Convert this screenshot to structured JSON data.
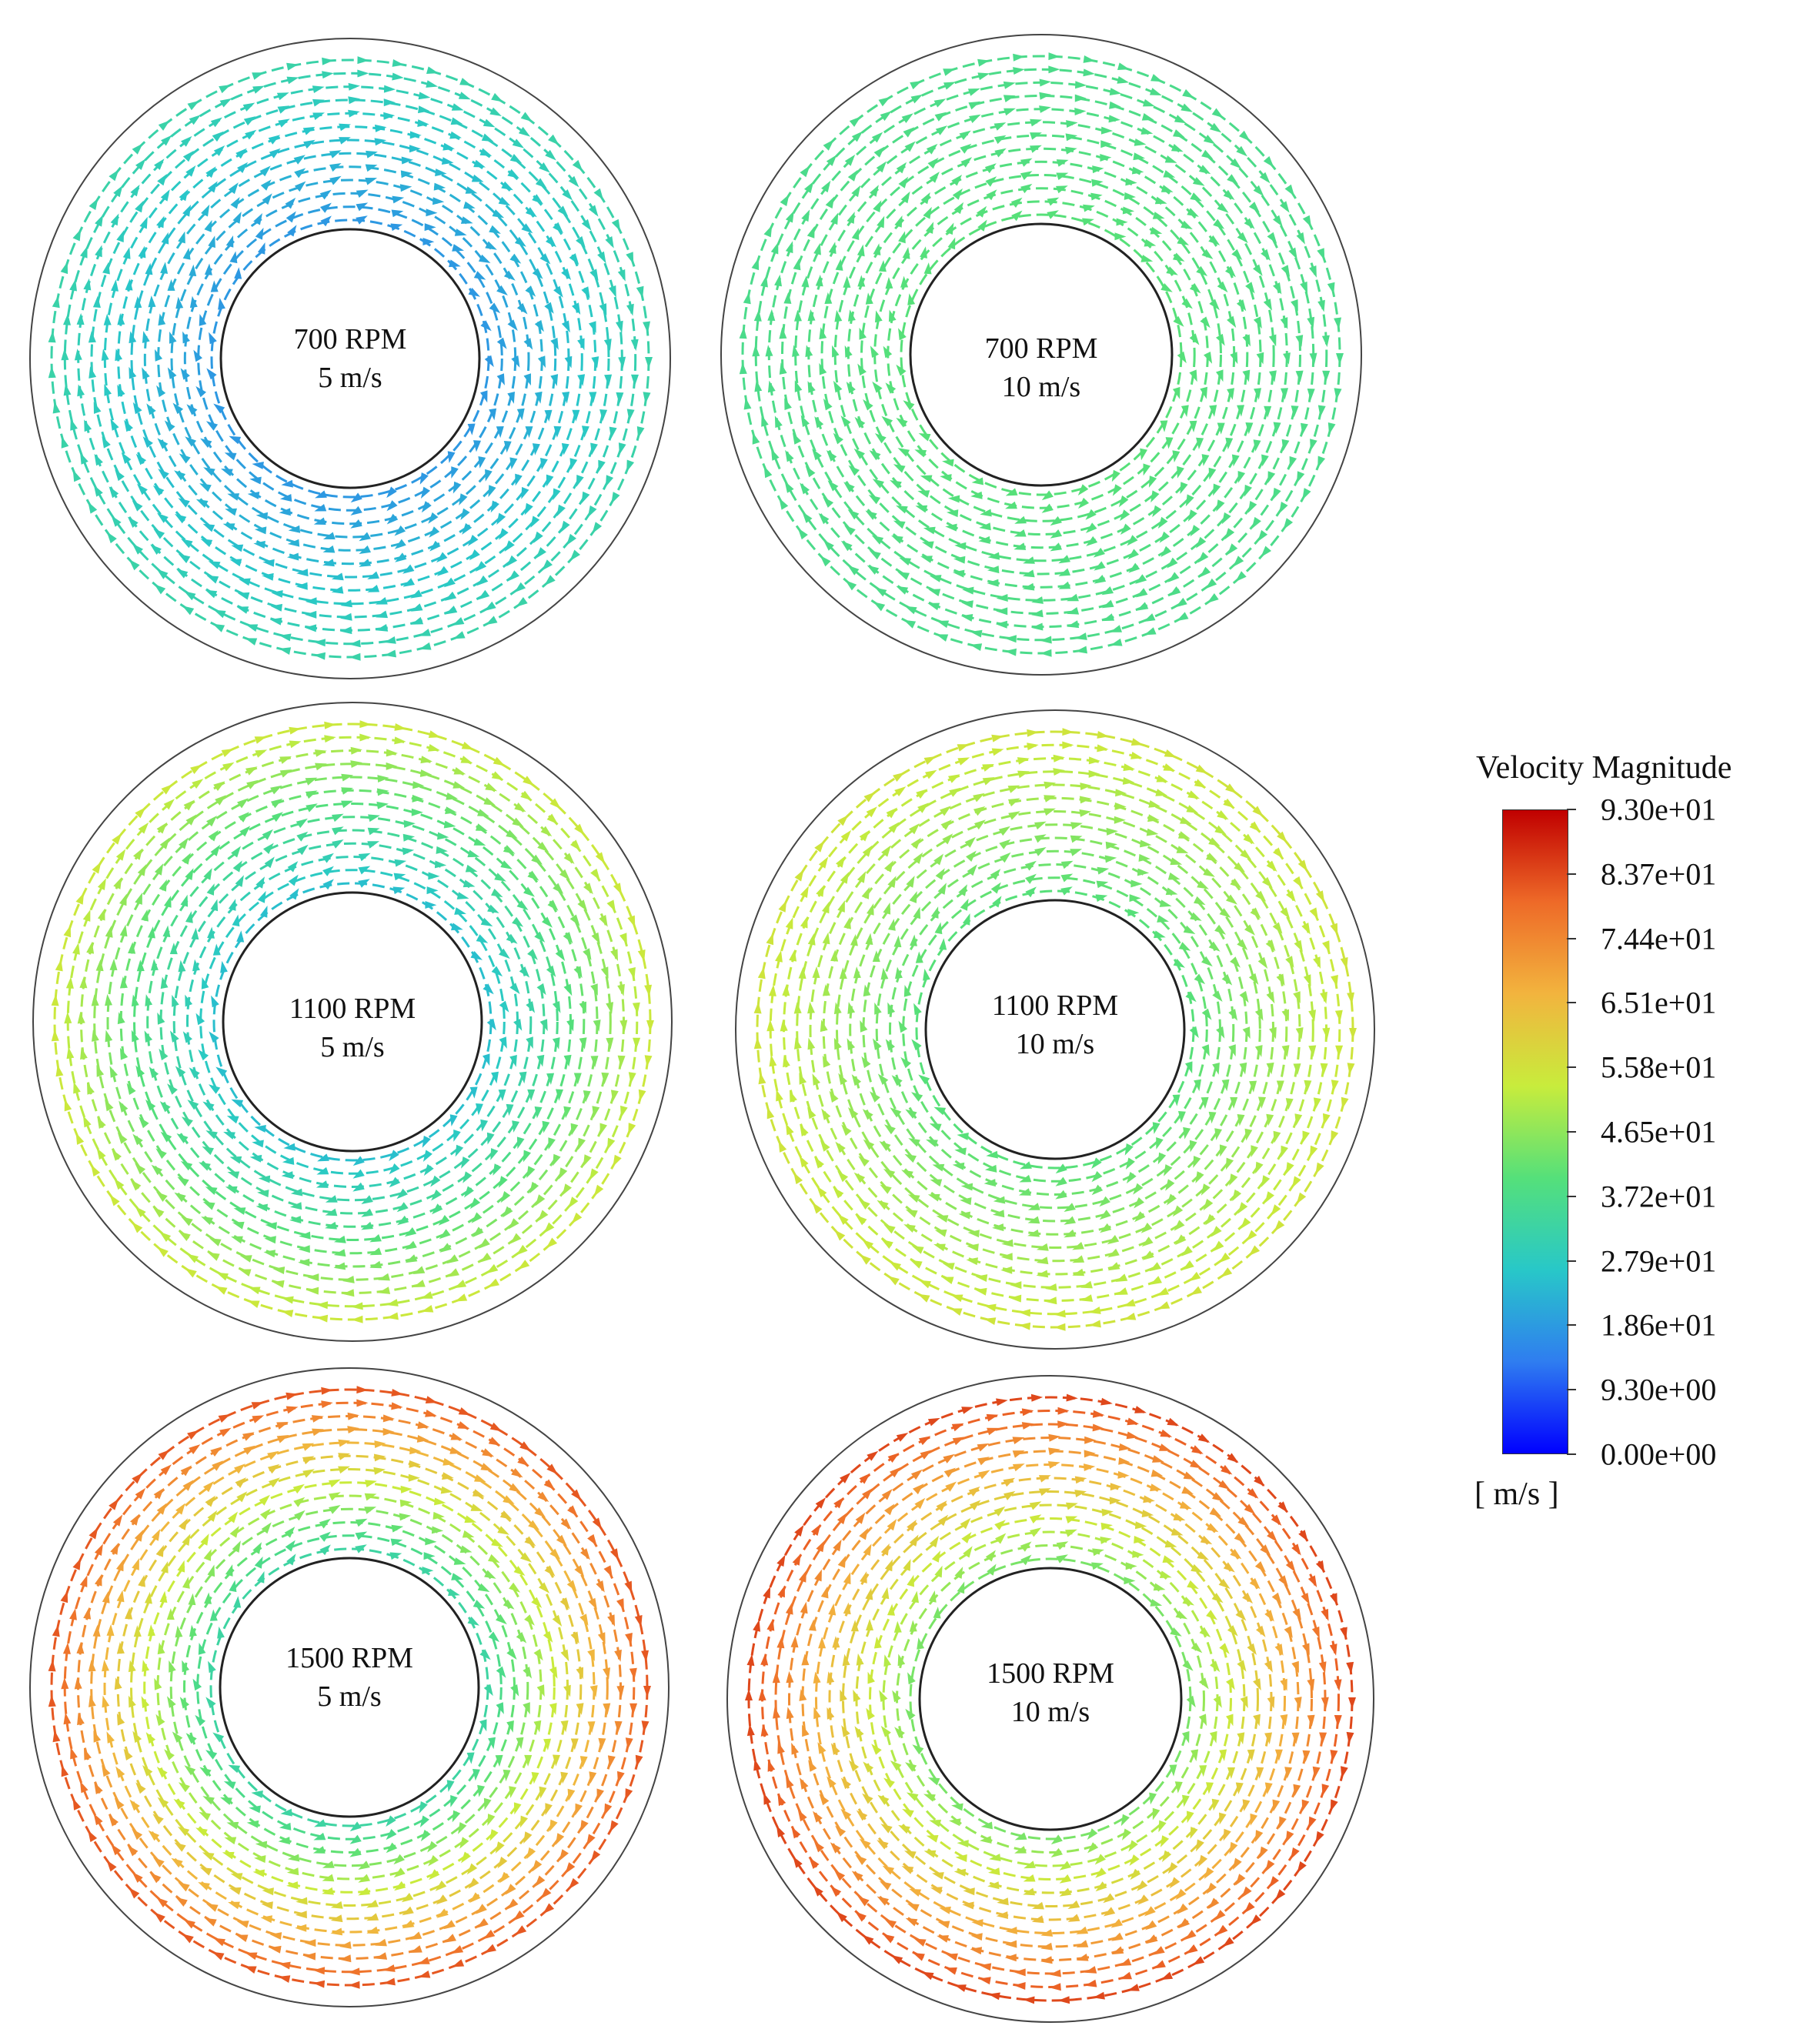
{
  "panels": [
    {
      "rpm_label": "700 RPM",
      "speed_label": "5 m/s",
      "inner_value": 18,
      "outer_value": 32
    },
    {
      "rpm_label": "700 RPM",
      "speed_label": "10 m/s",
      "inner_value": 40,
      "outer_value": 37
    },
    {
      "rpm_label": "1100 RPM",
      "speed_label": "5 m/s",
      "inner_value": 25,
      "outer_value": 54
    },
    {
      "rpm_label": "1100 RPM",
      "speed_label": "10 m/s",
      "inner_value": 40,
      "outer_value": 55
    },
    {
      "rpm_label": "1500 RPM",
      "speed_label": "5 m/s",
      "inner_value": 33,
      "outer_value": 82
    },
    {
      "rpm_label": "1500 RPM",
      "speed_label": "10 m/s",
      "inner_value": 44,
      "outer_value": 84
    }
  ],
  "legend": {
    "title": "Velocity Magnitude",
    "unit": "[ m/s ]",
    "min": 0,
    "max": 93,
    "ticks": [
      "9.30e+01",
      "8.37e+01",
      "7.44e+01",
      "6.51e+01",
      "5.58e+01",
      "4.65e+01",
      "3.72e+01",
      "2.79e+01",
      "1.86e+01",
      "9.30e+00",
      "0.00e+00"
    ],
    "colormap": [
      "#0000ff",
      "#2f7df0",
      "#28c8c8",
      "#55e07a",
      "#c8ec3c",
      "#f2b43e",
      "#ee6a28",
      "#c00000"
    ]
  }
}
